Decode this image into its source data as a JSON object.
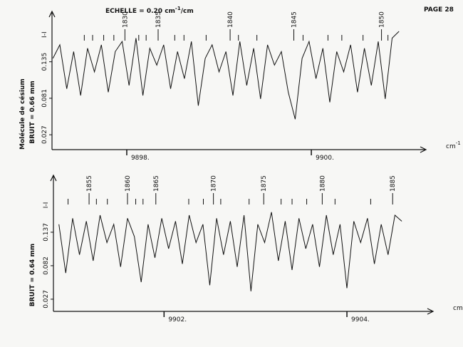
{
  "page": "PAGE 28",
  "scale_note": [
    "ECHELLE = 0.20 cm",
    "-1",
    "/cm"
  ],
  "side_label": "Molécule de césium",
  "chart_data": [
    {
      "type": "line",
      "noise_label": "BRUIT = 0.66 mm",
      "y_label": "I-I",
      "x_label": "cm",
      "x_label_sup": "-1",
      "xlim": [
        9897.19,
        9901.18
      ],
      "ylim": [
        0.005,
        0.2
      ],
      "xticks": [
        {
          "value": 9898,
          "label": "9898."
        },
        {
          "value": 9900,
          "label": "9900."
        }
      ],
      "yticks": [
        0.027,
        0.081,
        0.135
      ],
      "x": [
        9897.2,
        9897.275,
        9897.35,
        9897.425,
        9897.5,
        9897.575,
        9897.65,
        9897.725,
        9897.8,
        9897.875,
        9897.95,
        9898.025,
        9898.1,
        9898.175,
        9898.25,
        9898.325,
        9898.4,
        9898.475,
        9898.55,
        9898.625,
        9898.7,
        9898.775,
        9898.85,
        9898.925,
        9899,
        9899.075,
        9899.15,
        9899.225,
        9899.3,
        9899.375,
        9899.45,
        9899.525,
        9899.6,
        9899.675,
        9899.75,
        9899.825,
        9899.9,
        9899.975,
        9900.05,
        9900.125,
        9900.2,
        9900.275,
        9900.35,
        9900.425,
        9900.5,
        9900.575,
        9900.65,
        9900.725,
        9900.8,
        9900.875,
        9900.95
      ],
      "values": [
        0.14,
        0.16,
        0.095,
        0.15,
        0.085,
        0.155,
        0.12,
        0.16,
        0.09,
        0.15,
        0.165,
        0.1,
        0.17,
        0.085,
        0.155,
        0.13,
        0.16,
        0.095,
        0.15,
        0.11,
        0.165,
        0.07,
        0.14,
        0.16,
        0.12,
        0.15,
        0.085,
        0.165,
        0.1,
        0.155,
        0.08,
        0.16,
        0.13,
        0.15,
        0.09,
        0.05,
        0.14,
        0.165,
        0.11,
        0.155,
        0.075,
        0.15,
        0.12,
        0.16,
        0.09,
        0.155,
        0.1,
        0.165,
        0.08,
        0.17,
        0.18
      ],
      "annotations": [
        {
          "x": 9897.98,
          "text": "1830"
        },
        {
          "x": 9898.34,
          "text": "1835"
        },
        {
          "x": 9899.12,
          "text": "1840"
        },
        {
          "x": 9899.81,
          "text": "1845"
        },
        {
          "x": 9900.76,
          "text": "1850"
        }
      ],
      "markers": [
        9897.54,
        9897.63,
        9897.75,
        9897.86,
        9898.13,
        9898.21,
        9898.52,
        9898.62,
        9898.86,
        9899.21,
        9899.41,
        9899.91,
        9900.18,
        9900.33,
        9900.56,
        9900.83
      ]
    },
    {
      "type": "line",
      "noise_label": "BRUIT = 0.64 mm",
      "y_label": "I-I",
      "x_label": "cm",
      "x_label_sup": "-1",
      "xlim": [
        9900.79,
        9904.88
      ],
      "ylim": [
        0.007,
        0.22
      ],
      "xticks": [
        {
          "value": 9902,
          "label": "9902."
        },
        {
          "value": 9904,
          "label": "9904."
        }
      ],
      "yticks": [
        0.027,
        0.082,
        0.137
      ],
      "x": [
        9900.85,
        9900.925,
        9901,
        9901.075,
        9901.15,
        9901.225,
        9901.3,
        9901.375,
        9901.45,
        9901.525,
        9901.6,
        9901.675,
        9901.75,
        9901.825,
        9901.9,
        9901.975,
        9902.05,
        9902.125,
        9902.2,
        9902.275,
        9902.35,
        9902.425,
        9902.5,
        9902.575,
        9902.65,
        9902.725,
        9902.8,
        9902.875,
        9902.95,
        9903.025,
        9903.1,
        9903.175,
        9903.25,
        9903.325,
        9903.4,
        9903.475,
        9903.55,
        9903.625,
        9903.7,
        9903.775,
        9903.85,
        9903.925,
        9904,
        9904.075,
        9904.15,
        9904.225,
        9904.3,
        9904.375,
        9904.45,
        9904.525,
        9904.6
      ],
      "values": [
        0.15,
        0.07,
        0.16,
        0.1,
        0.155,
        0.09,
        0.165,
        0.12,
        0.15,
        0.08,
        0.16,
        0.13,
        0.055,
        0.15,
        0.095,
        0.16,
        0.11,
        0.155,
        0.085,
        0.165,
        0.12,
        0.15,
        0.05,
        0.16,
        0.1,
        0.155,
        0.08,
        0.165,
        0.04,
        0.15,
        0.12,
        0.17,
        0.09,
        0.155,
        0.075,
        0.16,
        0.11,
        0.15,
        0.08,
        0.165,
        0.1,
        0.15,
        0.045,
        0.155,
        0.12,
        0.16,
        0.085,
        0.15,
        0.1,
        0.165,
        0.155
      ],
      "annotations": [
        {
          "x": 9901.18,
          "text": "1855"
        },
        {
          "x": 9901.6,
          "text": "1860"
        },
        {
          "x": 9901.91,
          "text": "1865"
        },
        {
          "x": 9902.54,
          "text": "1870"
        },
        {
          "x": 9903.09,
          "text": "1875"
        },
        {
          "x": 9903.73,
          "text": "1880"
        },
        {
          "x": 9904.5,
          "text": "1885"
        }
      ],
      "markers": [
        9900.95,
        9901.26,
        9901.38,
        9901.69,
        9901.77,
        9902.27,
        9902.43,
        9902.62,
        9902.93,
        9903.28,
        9903.4,
        9903.56,
        9903.87,
        9904.26
      ]
    }
  ]
}
